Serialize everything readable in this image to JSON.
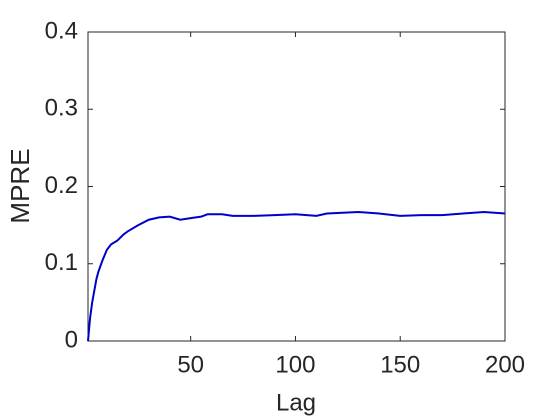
{
  "chart_data": {
    "type": "line",
    "x_label": "Lag",
    "y_label": "MPRE",
    "x": [
      1,
      2,
      3,
      4,
      5,
      6,
      8,
      10,
      12,
      15,
      18,
      20,
      25,
      30,
      35,
      40,
      45,
      50,
      55,
      58,
      65,
      70,
      80,
      90,
      100,
      110,
      115,
      130,
      140,
      150,
      160,
      170,
      180,
      190,
      200
    ],
    "series": [
      {
        "color": "#0000cc",
        "values": [
          0,
          0.03,
          0.05,
          0.065,
          0.08,
          0.09,
          0.105,
          0.118,
          0.125,
          0.13,
          0.138,
          0.142,
          0.15,
          0.157,
          0.16,
          0.161,
          0.157,
          0.159,
          0.161,
          0.164,
          0.164,
          0.162,
          0.162,
          0.163,
          0.164,
          0.162,
          0.165,
          0.167,
          0.165,
          0.162,
          0.163,
          0.163,
          0.165,
          0.167,
          0.165
        ]
      }
    ],
    "xlim": [
      1,
      200
    ],
    "xticks": [
      50,
      100,
      150,
      200
    ],
    "ylim": [
      0,
      0.4
    ],
    "yticks": [
      0,
      0.1,
      0.2,
      0.3,
      0.4
    ]
  }
}
